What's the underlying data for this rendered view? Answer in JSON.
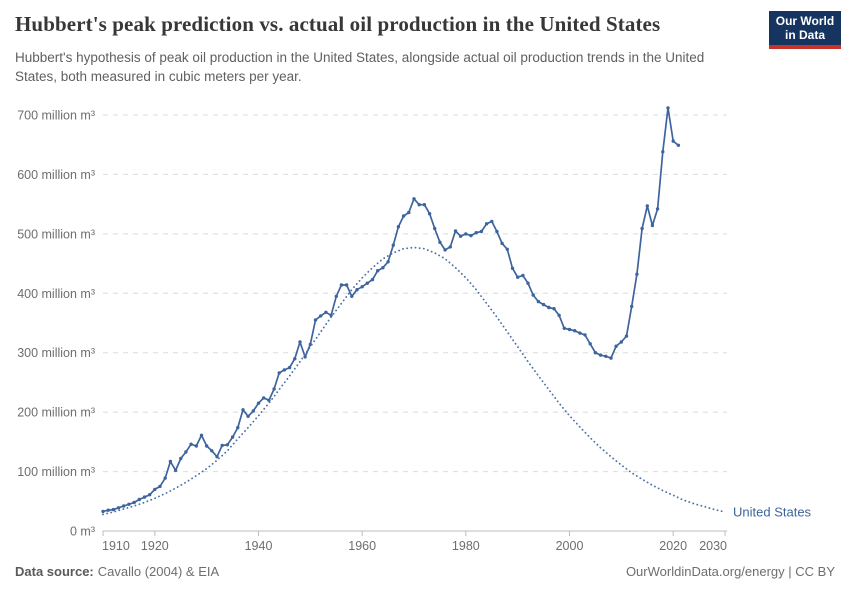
{
  "header": {
    "logo": {
      "line1": "Our World",
      "line2": "in Data",
      "bg_color": "#15345F",
      "stripe_color": "#C5342B"
    }
  },
  "chart_data": {
    "type": "line",
    "title": "Hubbert's peak prediction vs. actual oil production in the United States",
    "subtitle": "Hubbert's hypothesis of peak oil production in the United States, alongside actual oil production trends in the United States, both measured in cubic meters per year.",
    "xlabel": "",
    "ylabel": "cubic meters per year",
    "x_range": [
      1910,
      2030
    ],
    "ylim": [
      0,
      700
    ],
    "grid": true,
    "legend_position": "end-of-line-label",
    "end_label": "United States",
    "x_ticks": [
      1910,
      1920,
      1940,
      1960,
      1980,
      2000,
      2020,
      2030
    ],
    "y_ticks": [
      {
        "value": 0,
        "label": "0 m³"
      },
      {
        "value": 100,
        "label": "100 million m³"
      },
      {
        "value": 200,
        "label": "200 million m³"
      },
      {
        "value": 300,
        "label": "300 million m³"
      },
      {
        "value": 400,
        "label": "400 million m³"
      },
      {
        "value": 500,
        "label": "500 million m³"
      },
      {
        "value": 600,
        "label": "600 million m³"
      },
      {
        "value": 700,
        "label": "700 million m³"
      }
    ],
    "colors": {
      "grid": "#DBDBDB",
      "axis": "#BDBDBD",
      "tick_label": "#6E6E6E"
    },
    "unit": "million m³ per year",
    "series": [
      {
        "name": "United States actual oil production",
        "style": "solid",
        "markers": true,
        "color": "#3E649D",
        "x_start": 1910,
        "x_step": 1,
        "values": [
          33,
          35,
          36,
          39,
          42,
          45,
          48,
          53,
          57,
          61,
          70,
          75,
          89,
          117,
          102,
          122,
          133,
          146,
          143,
          161,
          143,
          135,
          125,
          144,
          145,
          158,
          174,
          204,
          193,
          202,
          215,
          224,
          220,
          239,
          266,
          271,
          275,
          290,
          318,
          293,
          314,
          355,
          362,
          368,
          363,
          395,
          414,
          414,
          395,
          406,
          411,
          417,
          423,
          438,
          443,
          453,
          481,
          512,
          530,
          536,
          559,
          549,
          549,
          534,
          509,
          486,
          473,
          478,
          505,
          496,
          500,
          497,
          502,
          504,
          517,
          521,
          504,
          484,
          474,
          442,
          427,
          430,
          417,
          397,
          386,
          381,
          376,
          374,
          363,
          341,
          339,
          337,
          333,
          330,
          315,
          300,
          296,
          294,
          291,
          311,
          318,
          328,
          378,
          432,
          509,
          547,
          514,
          542,
          638,
          712,
          656,
          649
        ]
      },
      {
        "name": "Hubbert's peak prediction",
        "style": "dotted",
        "markers": false,
        "color": "#4C70A9",
        "x_start": 1910,
        "x_step": 2,
        "values": [
          28,
          32,
          37,
          42,
          48,
          55,
          63,
          72,
          82,
          93,
          105,
          119,
          135,
          155,
          174,
          194,
          215,
          238,
          261,
          285,
          310,
          335,
          360,
          383,
          406,
          426,
          443,
          458,
          468,
          475,
          477,
          475,
          468,
          458,
          443,
          426,
          406,
          383,
          360,
          335,
          310,
          285,
          261,
          238,
          215,
          194,
          175,
          157,
          140,
          125,
          111,
          98,
          87,
          77,
          68,
          60,
          52,
          46,
          41,
          36,
          32
        ]
      }
    ]
  },
  "footer": {
    "source_label": "Data source:",
    "source_value": "Cavallo (2004) & EIA",
    "credit": "OurWorldinData.org/energy | CC BY"
  }
}
